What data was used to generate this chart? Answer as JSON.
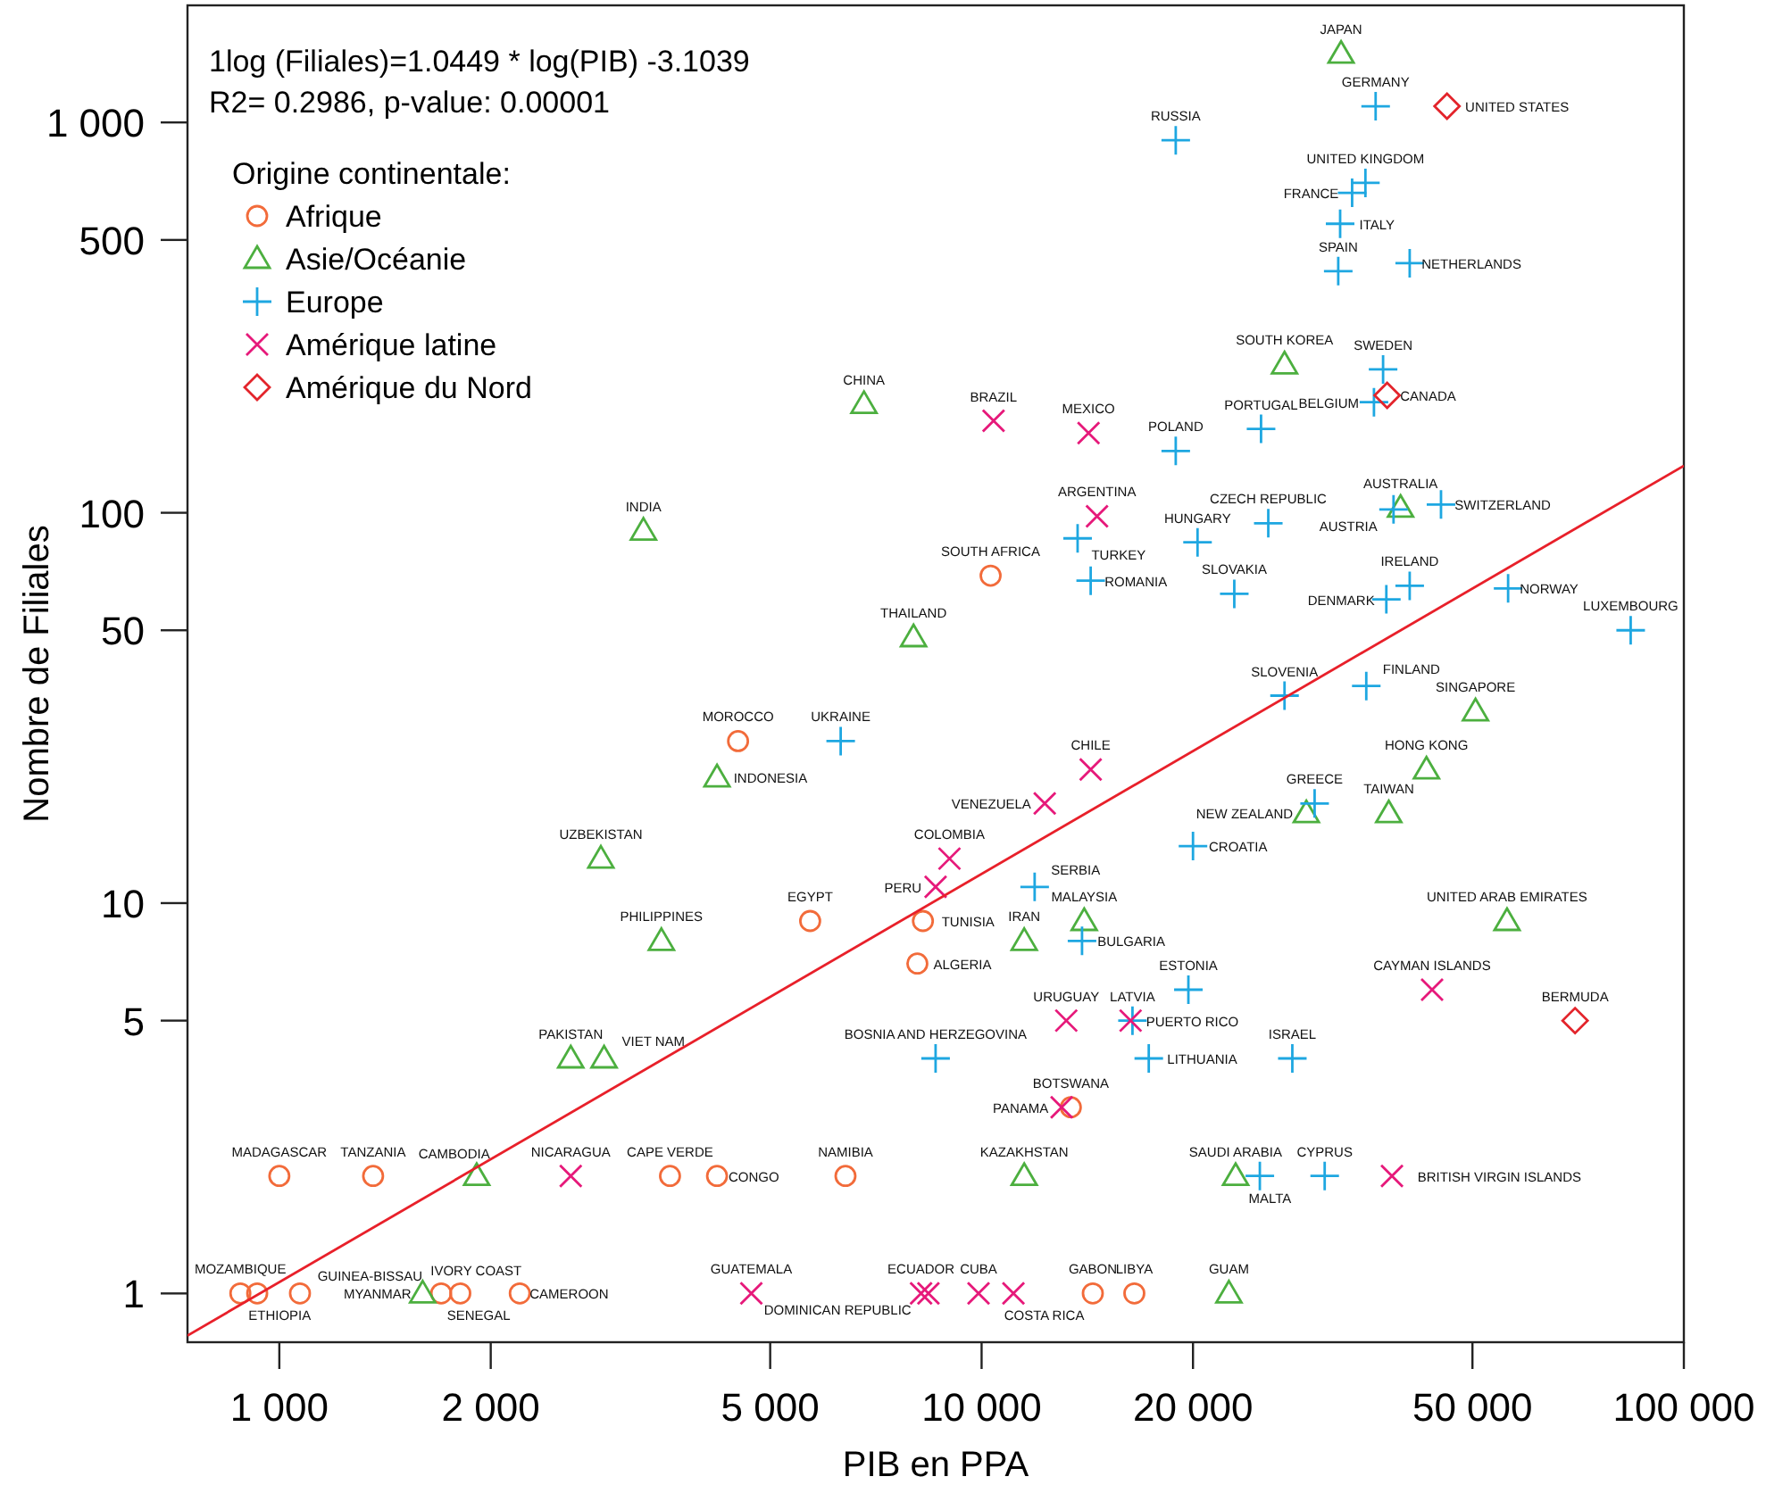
{
  "chart_data": {
    "type": "scatter",
    "xlabel": "PIB en PPA",
    "ylabel": "Nombre de Filiales",
    "legend_title": "Origine continentale:",
    "legend": "top left",
    "log": "xy",
    "grid": false,
    "xlim": [
      740,
      100000
    ],
    "ylim": [
      0.75,
      1995
    ],
    "xticks": [
      {
        "value": 1000,
        "label": "1 000"
      },
      {
        "value": 2000,
        "label": "2 000"
      },
      {
        "value": 5000,
        "label": "5 000"
      },
      {
        "value": 10000,
        "label": "10 000"
      },
      {
        "value": 20000,
        "label": "20 000"
      },
      {
        "value": 50000,
        "label": "50 000"
      },
      {
        "value": 100000,
        "label": "100 000"
      }
    ],
    "yticks": [
      1,
      5,
      10,
      50,
      100,
      500,
      {
        "value": 1000,
        "label": "1 000"
      }
    ],
    "series": [
      {
        "name": "Afrique",
        "marker": "circle",
        "color": "#f26b3a",
        "x": [
          1000,
          1360,
          3600,
          4200,
          6400,
          880,
          930,
          1070,
          1700,
          1810,
          2200,
          4500,
          5700,
          8250,
          8100,
          10300,
          13400,
          14400,
          16500
        ],
        "values": [
          2,
          2,
          2,
          2,
          2,
          1,
          1,
          1,
          1,
          1,
          1,
          26,
          9,
          9,
          7,
          69,
          3,
          1,
          1
        ]
      },
      {
        "name": "Asie/Océanie",
        "marker": "triangle",
        "color": "#4caf3f",
        "x": [
          3300,
          6800,
          8000,
          4200,
          2870,
          3500,
          2600,
          2900,
          1910,
          1600,
          11500,
          11500,
          14000,
          22500,
          23000,
          32500,
          27000,
          39500,
          50500,
          43000,
          29000,
          38000,
          56000
        ],
        "values": [
          90,
          190,
          48,
          21,
          13,
          8,
          4,
          4,
          2,
          1,
          2,
          8,
          9,
          1,
          2,
          1500,
          240,
          103,
          31,
          22,
          17,
          17,
          9
        ]
      },
      {
        "name": "Europe",
        "marker": "plus",
        "color": "#1ea7e1",
        "x": [
          18900,
          18900,
          25000,
          13700,
          14300,
          20300,
          25600,
          22900,
          36400,
          35200,
          33700,
          32400,
          32200,
          40700,
          37300,
          36200,
          38600,
          45100,
          37700,
          40700,
          56200,
          84000,
          27000,
          35300,
          29800,
          20000,
          6300,
          11900,
          13900,
          19700,
          16400,
          17300,
          8600,
          27700,
          24900,
          30800
        ],
        "values": [
          900,
          144,
          164,
          86,
          67,
          84,
          94,
          62,
          1100,
          700,
          660,
          550,
          416,
          436,
          233,
          192,
          102,
          105,
          60,
          65,
          64,
          50,
          34,
          36,
          18,
          14,
          26,
          11,
          8,
          6,
          5,
          4,
          4,
          4,
          2,
          2
        ]
      },
      {
        "name": "Amérique latine",
        "marker": "cross",
        "color": "#e6197a",
        "x": [
          10400,
          14200,
          14600,
          14300,
          12300,
          9000,
          8600,
          13200,
          16300,
          13000,
          2600,
          4700,
          8200,
          8400,
          9900,
          11100,
          43800,
          38400
        ],
        "values": [
          172,
          160,
          98,
          22,
          18,
          13,
          11,
          5,
          5,
          3,
          2,
          1,
          1,
          1,
          1,
          1,
          6,
          2
        ]
      },
      {
        "name": "Amérique du Nord",
        "marker": "diamond",
        "color": "#e3242b",
        "x": [
          46000,
          37800,
          70000
        ],
        "values": [
          1100,
          200,
          5
        ]
      },
      {
        "type": "line",
        "color": "#e8202a",
        "x": [
          740,
          100000
        ],
        "values": [
          0.78,
          132
        ]
      }
    ],
    "annotations": [
      "1log (Filiales)=1.0449 * log(PIB) -3.1039",
      "R2= 0.2986, p-value: 0.00001",
      {
        "text": "MADAGASCAR",
        "x": 1000,
        "y": 2
      },
      {
        "text": "TANZANIA",
        "x": 1360,
        "y": 2
      },
      {
        "text": "CAPE VERDE",
        "x": 3600,
        "y": 2
      },
      {
        "text": "CONGO",
        "x": 4200,
        "y": 2
      },
      {
        "text": "NAMIBIA",
        "x": 6400,
        "y": 2
      },
      {
        "text": "MOZAMBIQUE",
        "x": 880,
        "y": 1
      },
      {
        "text": "ETHIOPIA",
        "x": 930,
        "y": 1
      },
      {
        "text": "GUINEA-BISSAU",
        "x": 1070,
        "y": 1
      },
      {
        "text": "IVORY COAST",
        "x": 1700,
        "y": 1
      },
      {
        "text": "SENEGAL",
        "x": 1810,
        "y": 1
      },
      {
        "text": "CAMEROON",
        "x": 2200,
        "y": 1
      },
      {
        "text": "MOROCCO",
        "x": 4500,
        "y": 26
      },
      {
        "text": "EGYPT",
        "x": 5700,
        "y": 9
      },
      {
        "text": "TUNISIA",
        "x": 8250,
        "y": 9
      },
      {
        "text": "ALGERIA",
        "x": 8100,
        "y": 7
      },
      {
        "text": "SOUTH AFRICA",
        "x": 10300,
        "y": 69
      },
      {
        "text": "BOTSWANA",
        "x": 13400,
        "y": 3
      },
      {
        "text": "GABON",
        "x": 14400,
        "y": 1
      },
      {
        "text": "LIBYA",
        "x": 16500,
        "y": 1
      },
      {
        "text": "INDIA",
        "x": 3300,
        "y": 90
      },
      {
        "text": "CHINA",
        "x": 6800,
        "y": 190
      },
      {
        "text": "THAILAND",
        "x": 8000,
        "y": 48
      },
      {
        "text": "INDONESIA",
        "x": 4200,
        "y": 21
      },
      {
        "text": "UZBEKISTAN",
        "x": 2870,
        "y": 13
      },
      {
        "text": "PHILIPPINES",
        "x": 3500,
        "y": 8
      },
      {
        "text": "PAKISTAN",
        "x": 2600,
        "y": 4
      },
      {
        "text": "VIET NAM",
        "x": 2900,
        "y": 4
      },
      {
        "text": "CAMBODIA",
        "x": 1910,
        "y": 2
      },
      {
        "text": "MYANMAR",
        "x": 1600,
        "y": 1
      },
      {
        "text": "KAZAKHSTAN",
        "x": 11500,
        "y": 2
      },
      {
        "text": "IRAN",
        "x": 11500,
        "y": 8
      },
      {
        "text": "MALAYSIA",
        "x": 14000,
        "y": 9
      },
      {
        "text": "GUAM",
        "x": 22500,
        "y": 1
      },
      {
        "text": "SAUDI ARABIA",
        "x": 23000,
        "y": 2
      },
      {
        "text": "JAPAN",
        "x": 32500,
        "y": 1500
      },
      {
        "text": "SOUTH KOREA",
        "x": 27000,
        "y": 240
      },
      {
        "text": "AUSTRALIA",
        "x": 39500,
        "y": 103
      },
      {
        "text": "SINGAPORE",
        "x": 50500,
        "y": 31
      },
      {
        "text": "HONG KONG",
        "x": 43000,
        "y": 22
      },
      {
        "text": "NEW ZEALAND",
        "x": 29000,
        "y": 17
      },
      {
        "text": "TAIWAN",
        "x": 38000,
        "y": 17
      },
      {
        "text": "UNITED ARAB EMIRATES",
        "x": 56000,
        "y": 9
      },
      {
        "text": "RUSSIA",
        "x": 18900,
        "y": 900
      },
      {
        "text": "POLAND",
        "x": 18900,
        "y": 144
      },
      {
        "text": "PORTUGAL",
        "x": 25000,
        "y": 164
      },
      {
        "text": "TURKEY",
        "x": 13700,
        "y": 86
      },
      {
        "text": "ROMANIA",
        "x": 14300,
        "y": 67
      },
      {
        "text": "HUNGARY",
        "x": 20300,
        "y": 84
      },
      {
        "text": "CZECH REPUBLIC",
        "x": 25600,
        "y": 94
      },
      {
        "text": "SLOVAKIA",
        "x": 22900,
        "y": 62
      },
      {
        "text": "GERMANY",
        "x": 36400,
        "y": 1100
      },
      {
        "text": "UNITED KINGDOM",
        "x": 35200,
        "y": 700
      },
      {
        "text": "FRANCE",
        "x": 33700,
        "y": 660
      },
      {
        "text": "ITALY",
        "x": 32400,
        "y": 550
      },
      {
        "text": "SPAIN",
        "x": 32200,
        "y": 416
      },
      {
        "text": "NETHERLANDS",
        "x": 40700,
        "y": 436
      },
      {
        "text": "SWEDEN",
        "x": 37300,
        "y": 233
      },
      {
        "text": "BELGIUM",
        "x": 36200,
        "y": 192
      },
      {
        "text": "AUSTRIA",
        "x": 38600,
        "y": 102
      },
      {
        "text": "SWITZERLAND",
        "x": 45100,
        "y": 105
      },
      {
        "text": "DENMARK",
        "x": 37700,
        "y": 60
      },
      {
        "text": "IRELAND",
        "x": 40700,
        "y": 65
      },
      {
        "text": "NORWAY",
        "x": 56200,
        "y": 64
      },
      {
        "text": "LUXEMBOURG",
        "x": 84000,
        "y": 50
      },
      {
        "text": "SLOVENIA",
        "x": 27000,
        "y": 34
      },
      {
        "text": "FINLAND",
        "x": 35300,
        "y": 36
      },
      {
        "text": "GREECE",
        "x": 29800,
        "y": 18
      },
      {
        "text": "CROATIA",
        "x": 20000,
        "y": 14
      },
      {
        "text": "UKRAINE",
        "x": 6300,
        "y": 26
      },
      {
        "text": "SERBIA",
        "x": 11900,
        "y": 11
      },
      {
        "text": "BULGARIA",
        "x": 13900,
        "y": 8
      },
      {
        "text": "ESTONIA",
        "x": 19700,
        "y": 6
      },
      {
        "text": "LATVIA",
        "x": 16400,
        "y": 5
      },
      {
        "text": "LITHUANIA",
        "x": 17300,
        "y": 4
      },
      {
        "text": "BOSNIA AND HERZEGOVINA",
        "x": 8600,
        "y": 4
      },
      {
        "text": "ISRAEL",
        "x": 27700,
        "y": 4
      },
      {
        "text": "MALTA",
        "x": 24900,
        "y": 2
      },
      {
        "text": "CYPRUS",
        "x": 30800,
        "y": 2
      },
      {
        "text": "BRAZIL",
        "x": 10400,
        "y": 172
      },
      {
        "text": "MEXICO",
        "x": 14200,
        "y": 160
      },
      {
        "text": "ARGENTINA",
        "x": 14600,
        "y": 98
      },
      {
        "text": "CHILE",
        "x": 14300,
        "y": 22
      },
      {
        "text": "VENEZUELA",
        "x": 12300,
        "y": 18
      },
      {
        "text": "COLOMBIA",
        "x": 9000,
        "y": 13
      },
      {
        "text": "PERU",
        "x": 8600,
        "y": 11
      },
      {
        "text": "URUGUAY",
        "x": 13200,
        "y": 5
      },
      {
        "text": "PUERTO RICO",
        "x": 16300,
        "y": 5
      },
      {
        "text": "PANAMA",
        "x": 13000,
        "y": 3
      },
      {
        "text": "NICARAGUA",
        "x": 2600,
        "y": 2
      },
      {
        "text": "GUATEMALA",
        "x": 4700,
        "y": 1
      },
      {
        "text": "ECUADOR",
        "x": 8200,
        "y": 1
      },
      {
        "text": "DOMINICAN REPUBLIC",
        "x": 8400,
        "y": 1
      },
      {
        "text": "CUBA",
        "x": 9900,
        "y": 1
      },
      {
        "text": "COSTA RICA",
        "x": 11100,
        "y": 1
      },
      {
        "text": "CAYMAN ISLANDS",
        "x": 43800,
        "y": 6
      },
      {
        "text": "BRITISH VIRGIN ISLANDS",
        "x": 38400,
        "y": 2
      },
      {
        "text": "UNITED STATES",
        "x": 46000,
        "y": 1100
      },
      {
        "text": "CANADA",
        "x": 37800,
        "y": 200
      },
      {
        "text": "BERMUDA",
        "x": 70000,
        "y": 5
      }
    ]
  }
}
